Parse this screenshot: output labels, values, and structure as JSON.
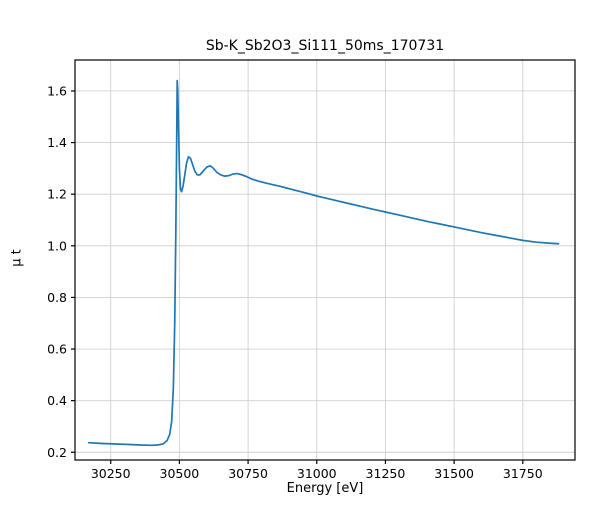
{
  "figure": {
    "background": "#ffffff"
  },
  "chart_data": {
    "type": "line",
    "title": "Sb-K_Sb2O3_Si111_50ms_170731",
    "xlabel": "Energy [eV]",
    "ylabel": "μ t",
    "xlim": [
      30120,
      31940
    ],
    "ylim": [
      0.17,
      1.72
    ],
    "xticks": [
      30250,
      30500,
      30750,
      31000,
      31250,
      31500,
      31750
    ],
    "xtick_labels": [
      "30250",
      "30500",
      "30750",
      "31000",
      "31250",
      "31500",
      "31750"
    ],
    "yticks": [
      0.2,
      0.4,
      0.6,
      0.8,
      1.0,
      1.2,
      1.4,
      1.6
    ],
    "ytick_labels": [
      "0.2",
      "0.4",
      "0.6",
      "0.8",
      "1.0",
      "1.2",
      "1.4",
      "1.6"
    ],
    "grid": true,
    "grid_color": "#d0d0d0",
    "axis_color": "#000000",
    "line_color": "#1f77b4",
    "legend_position": "none",
    "series": [
      {
        "name": "mu_t",
        "x": [
          30170,
          30220,
          30270,
          30320,
          30360,
          30400,
          30420,
          30440,
          30455,
          30465,
          30472,
          30478,
          30483,
          30487,
          30490,
          30492,
          30494,
          30497,
          30500,
          30504,
          30508,
          30513,
          30519,
          30526,
          30533,
          30540,
          30548,
          30556,
          30565,
          30575,
          30587,
          30600,
          30612,
          30624,
          30636,
          30650,
          30665,
          30680,
          30695,
          30710,
          30725,
          30745,
          30765,
          30790,
          30815,
          30840,
          30865,
          30890,
          30915,
          30940,
          30970,
          31000,
          31040,
          31080,
          31120,
          31160,
          31200,
          31250,
          31300,
          31350,
          31400,
          31450,
          31500,
          31550,
          31600,
          31650,
          31700,
          31750,
          31800,
          31850,
          31880
        ],
        "y": [
          0.237,
          0.234,
          0.232,
          0.23,
          0.228,
          0.227,
          0.228,
          0.232,
          0.245,
          0.27,
          0.32,
          0.45,
          0.7,
          1.05,
          1.4,
          1.64,
          1.6,
          1.45,
          1.3,
          1.22,
          1.21,
          1.23,
          1.27,
          1.32,
          1.345,
          1.34,
          1.315,
          1.29,
          1.275,
          1.275,
          1.29,
          1.305,
          1.31,
          1.3,
          1.285,
          1.275,
          1.27,
          1.272,
          1.278,
          1.28,
          1.276,
          1.268,
          1.258,
          1.25,
          1.243,
          1.237,
          1.231,
          1.224,
          1.217,
          1.21,
          1.202,
          1.193,
          1.183,
          1.173,
          1.163,
          1.153,
          1.143,
          1.131,
          1.119,
          1.107,
          1.095,
          1.084,
          1.073,
          1.062,
          1.051,
          1.041,
          1.031,
          1.021,
          1.014,
          1.01,
          1.008
        ]
      }
    ]
  }
}
